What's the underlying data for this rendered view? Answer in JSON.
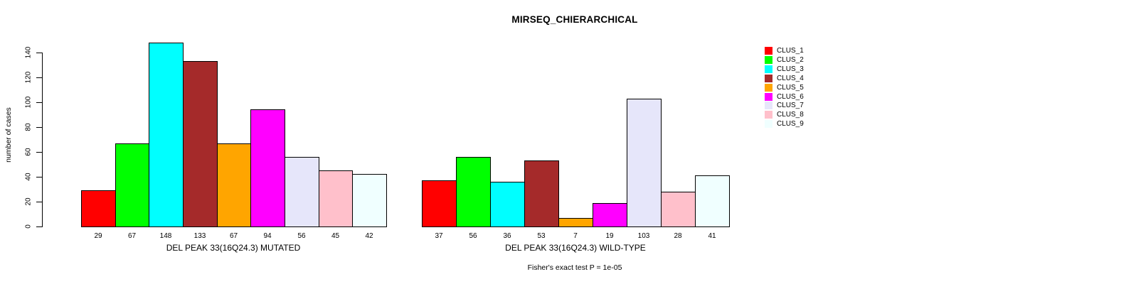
{
  "chart_data": {
    "type": "bar",
    "title": "MIRSEQ_CHIERARCHICAL",
    "ylabel": "number of cases",
    "ylim": [
      0,
      148
    ],
    "yticks": [
      0,
      20,
      40,
      60,
      80,
      100,
      120,
      140
    ],
    "grid": false,
    "legend_position": "right",
    "categories": [
      "CLUS_1",
      "CLUS_2",
      "CLUS_3",
      "CLUS_4",
      "CLUS_5",
      "CLUS_6",
      "CLUS_7",
      "CLUS_8",
      "CLUS_9"
    ],
    "colors": [
      "#FF0000",
      "#00FF00",
      "#00FFFF",
      "#A52A2A",
      "#FFA500",
      "#FF00FF",
      "#E6E6FA",
      "#FFC0CB",
      "#F0FFFF"
    ],
    "bar_border_color": "#000000",
    "groups": [
      {
        "label": "DEL PEAK 33(16Q24.3) MUTATED",
        "values": [
          29,
          67,
          148,
          133,
          67,
          94,
          56,
          45,
          42
        ]
      },
      {
        "label": "DEL PEAK 33(16Q24.3) WILD-TYPE",
        "values": [
          37,
          56,
          36,
          53,
          7,
          19,
          103,
          28,
          41
        ]
      }
    ],
    "annotation": "Fisher's exact test P = 1e-05"
  }
}
